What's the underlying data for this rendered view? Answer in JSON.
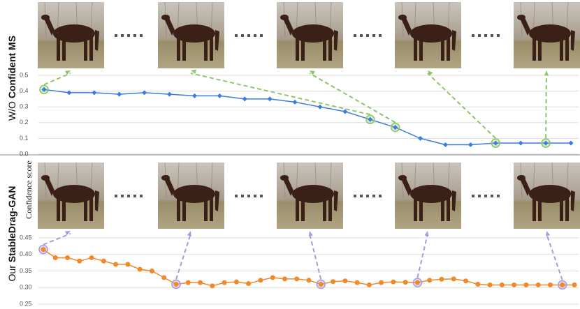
{
  "y_label": "Confidence score",
  "chart_data": [
    {
      "type": "line",
      "row_label": {
        "prefix": "W/O ",
        "bold": "Confident MS"
      },
      "color": "#3b7ddd",
      "marker": "diamond",
      "highlight": [
        0,
        13,
        14,
        18,
        20
      ],
      "highlight_color": "#8cc56a",
      "values": [
        0.41,
        0.39,
        0.39,
        0.38,
        0.39,
        0.38,
        0.37,
        0.37,
        0.35,
        0.35,
        0.33,
        0.3,
        0.27,
        0.22,
        0.17,
        0.1,
        0.06,
        0.06,
        0.07,
        0.07,
        0.07,
        0.07
      ],
      "ylim": [
        0,
        0.5
      ],
      "yticks": [
        {
          "value": 0,
          "label": "0.0"
        },
        0.1,
        0.2,
        0.3,
        0.4,
        0.5
      ],
      "grid": true
    },
    {
      "type": "line",
      "row_label": {
        "prefix": "Our ",
        "bold": "StableDrag-GAN"
      },
      "color": "#f0892a",
      "marker": "circle",
      "highlight": [
        0,
        11,
        23,
        31,
        43
      ],
      "highlight_color": "#a99be0",
      "values": [
        0.415,
        0.39,
        0.39,
        0.38,
        0.39,
        0.38,
        0.37,
        0.37,
        0.355,
        0.35,
        0.33,
        0.31,
        0.315,
        0.315,
        0.305,
        0.315,
        0.317,
        0.312,
        0.322,
        0.33,
        0.326,
        0.326,
        0.322,
        0.31,
        0.318,
        0.32,
        0.315,
        0.308,
        0.315,
        0.317,
        0.316,
        0.315,
        0.322,
        0.325,
        0.326,
        0.32,
        0.31,
        0.308,
        0.308,
        0.308,
        0.308,
        0.308,
        0.308,
        0.308,
        0.308
      ],
      "ylim": [
        0.25,
        0.45
      ],
      "yticks": [
        0.25,
        {
          "value": 0.3,
          "label": "0.30"
        },
        0.35,
        {
          "value": 0.4,
          "label": "0.40"
        },
        0.45
      ],
      "grid": true
    }
  ]
}
